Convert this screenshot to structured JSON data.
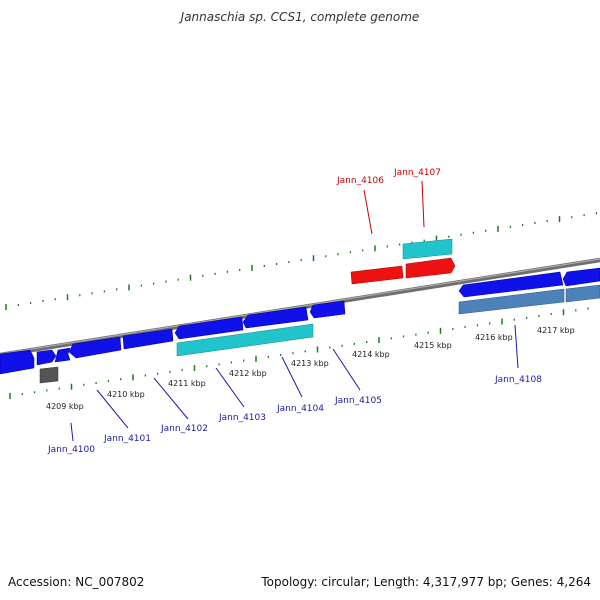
{
  "title": "Jannaschia sp. CCS1, complete genome",
  "footer": {
    "accession": "Accession: NC_007802",
    "summary": "Topology: circular; Length: 4,317,977 bp; Genes: 4,264"
  },
  "colors": {
    "forward_gene": "#1010e8",
    "reverse_gene": "#0000cc",
    "highlight_gene": "#ee1111",
    "cds_feature": "#22c4cc",
    "other_feature": "#4c82b8",
    "pseudo_feature": "#555555",
    "backbone": "#888888",
    "ticks": "#1e7a1e",
    "gene_label": "#1a1aa8",
    "highlight_label": "#cc0000"
  },
  "scale_labels": [
    "4209 kbp",
    "4210 kbp",
    "4211 kbp",
    "4212 kbp",
    "4213 kbp",
    "4214 kbp",
    "4215 kbp",
    "4216 kbp",
    "4217 kbp"
  ],
  "gene_labels": [
    {
      "name": "Jann_4100",
      "highlight": false
    },
    {
      "name": "Jann_4101",
      "highlight": false
    },
    {
      "name": "Jann_4102",
      "highlight": false
    },
    {
      "name": "Jann_4103",
      "highlight": false
    },
    {
      "name": "Jann_4104",
      "highlight": false
    },
    {
      "name": "Jann_4105",
      "highlight": false
    },
    {
      "name": "Jann_4106",
      "highlight": true
    },
    {
      "name": "Jann_4107",
      "highlight": true
    },
    {
      "name": "Jann_4108",
      "highlight": false
    }
  ]
}
